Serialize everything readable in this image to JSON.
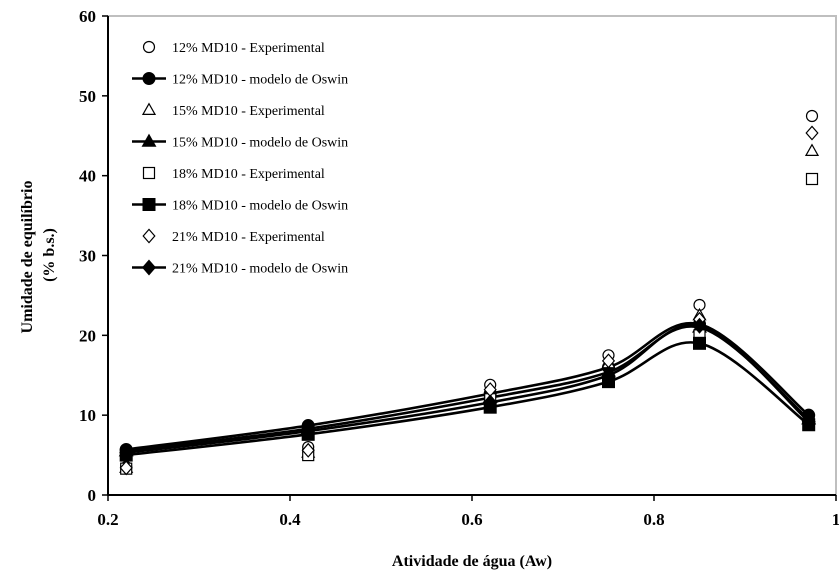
{
  "chart_data": {
    "type": "line",
    "title": "",
    "xlabel": "Atividade de água (Aw)",
    "ylabel_lines": [
      "Umidade de equilíbrio",
      "(% b.s.)"
    ],
    "xlim": [
      0.2,
      1.0
    ],
    "ylim": [
      0,
      60
    ],
    "x_ticks": [
      0.2,
      0.4,
      0.6,
      0.8,
      1
    ],
    "x_tick_labels": [
      "0.2",
      "0.4",
      "0.6",
      "0.8",
      "1"
    ],
    "y_ticks": [
      0,
      10,
      20,
      30,
      40,
      50,
      60
    ],
    "y_tick_labels": [
      "0",
      "10",
      "20",
      "30",
      "40",
      "50",
      "60"
    ],
    "grid": false,
    "legend_position": "top-left",
    "x": [
      0.22,
      0.42,
      0.62,
      0.75,
      0.85,
      0.97
    ],
    "series": [
      {
        "name": "12% MD10 - Experimental",
        "kind": "points",
        "marker": "circle-open",
        "values": [
          3.5,
          6.0,
          13.8,
          17.5,
          23.8,
          10.0
        ]
      },
      {
        "name": "12% MD10 - modelo de Oswin",
        "kind": "line",
        "marker": "circle-filled",
        "values": [
          5.7,
          8.7,
          12.7,
          16.0,
          21.4,
          10.0
        ]
      },
      {
        "name": "15% MD10 - Experimental",
        "kind": "points",
        "marker": "triangle-open",
        "values": [
          3.4,
          5.3,
          13.0,
          16.5,
          22.5,
          9.6
        ]
      },
      {
        "name": "15% MD10 - modelo de Oswin",
        "kind": "line",
        "marker": "triangle-filled",
        "values": [
          5.5,
          8.3,
          12.2,
          15.4,
          21.0,
          9.5
        ]
      },
      {
        "name": "18% MD10 - Experimental",
        "kind": "points",
        "marker": "square-open",
        "values": [
          3.3,
          5.0,
          12.0,
          14.5,
          20.0,
          9.0
        ]
      },
      {
        "name": "18% MD10 - modelo de Oswin",
        "kind": "line",
        "marker": "square-filled",
        "values": [
          5.0,
          7.6,
          11.0,
          14.2,
          19.0,
          8.8
        ]
      },
      {
        "name": "21% MD10 - Experimental",
        "kind": "points",
        "marker": "diamond-open",
        "values": [
          3.4,
          5.6,
          13.2,
          16.8,
          22.0,
          9.4
        ]
      },
      {
        "name": "21% MD10 - modelo de Oswin",
        "kind": "line",
        "marker": "diamond-filled",
        "values": [
          5.3,
          8.0,
          11.6,
          15.0,
          21.2,
          9.2
        ]
      }
    ]
  }
}
